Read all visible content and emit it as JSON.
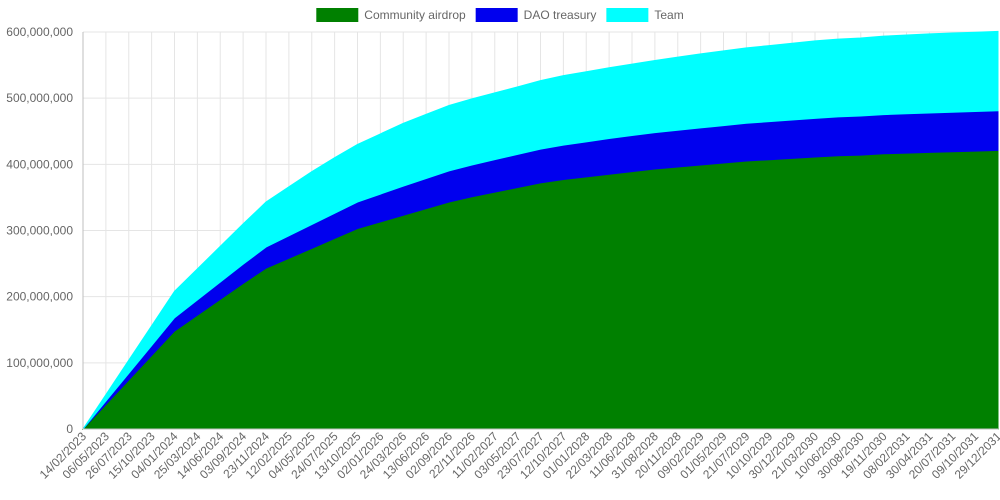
{
  "chart_data": {
    "type": "area",
    "stacked": true,
    "legend_position": "top",
    "grid": true,
    "ylim": [
      0,
      600000000
    ],
    "y_ticks": [
      0,
      100000000,
      200000000,
      300000000,
      400000000,
      500000000,
      600000000
    ],
    "y_tick_labels": [
      "0",
      "100,000,000",
      "200,000,000",
      "300,000,000",
      "400,000,000",
      "500,000,000",
      "600,000,000"
    ],
    "x_labels": [
      "14/02/2023",
      "06/05/2023",
      "26/07/2023",
      "15/10/2023",
      "04/01/2024",
      "25/03/2024",
      "14/06/2024",
      "03/09/2024",
      "23/11/2024",
      "12/02/2025",
      "04/05/2025",
      "24/07/2025",
      "13/10/2025",
      "02/01/2026",
      "24/03/2026",
      "13/06/2026",
      "02/09/2026",
      "22/11/2026",
      "11/02/2027",
      "03/05/2027",
      "23/07/2027",
      "12/10/2027",
      "01/01/2028",
      "22/03/2028",
      "11/06/2028",
      "31/08/2028",
      "20/11/2028",
      "09/02/2029",
      "01/05/2029",
      "21/07/2029",
      "10/10/2029",
      "30/12/2029",
      "21/03/2030",
      "10/06/2030",
      "30/08/2030",
      "19/11/2030",
      "08/02/2031",
      "30/04/2031",
      "20/07/2031",
      "09/10/2031",
      "29/12/2031"
    ],
    "series": [
      {
        "name": "Community airdrop",
        "color": "#008000",
        "values": [
          0,
          37000000,
          74000000,
          111000000,
          148000000,
          172000000,
          196000000,
          220000000,
          243000000,
          258000000,
          273000000,
          288000000,
          303000000,
          313000000,
          323000000,
          333000000,
          343000000,
          351000000,
          358000000,
          365000000,
          372000000,
          377000000,
          381000000,
          385000000,
          389000000,
          393000000,
          396000000,
          399000000,
          402000000,
          405000000,
          407000000,
          409000000,
          411000000,
          413000000,
          414000000,
          416000000,
          417000000,
          418000000,
          419000000,
          420000000,
          421000000
        ]
      },
      {
        "name": "DAO treasury",
        "color": "#0000ee",
        "values": [
          0,
          5000000,
          10000000,
          15000000,
          20000000,
          23000000,
          26000000,
          29000000,
          32000000,
          34000000,
          36000000,
          38000000,
          40000000,
          42000000,
          44000000,
          45500000,
          47000000,
          48000000,
          49000000,
          50000000,
          51000000,
          52000000,
          53000000,
          54000000,
          54500000,
          55000000,
          55500000,
          56000000,
          56500000,
          57000000,
          57500000,
          58000000,
          58500000,
          58800000,
          59000000,
          59200000,
          59400000,
          59600000,
          59700000,
          59800000,
          60000000
        ]
      },
      {
        "name": "Team",
        "color": "#00ffff",
        "values": [
          0,
          10000000,
          20000000,
          30000000,
          40000000,
          47000000,
          54000000,
          61000000,
          68000000,
          74000000,
          80000000,
          84000000,
          87000000,
          91000000,
          95000000,
          97000000,
          99000000,
          100000000,
          101000000,
          102000000,
          103500000,
          105000000,
          106000000,
          107000000,
          108000000,
          109000000,
          110500000,
          112000000,
          113000000,
          114000000,
          115000000,
          116000000,
          117000000,
          117500000,
          118000000,
          118500000,
          119000000,
          119500000,
          119700000,
          119900000,
          120000000
        ]
      }
    ]
  }
}
